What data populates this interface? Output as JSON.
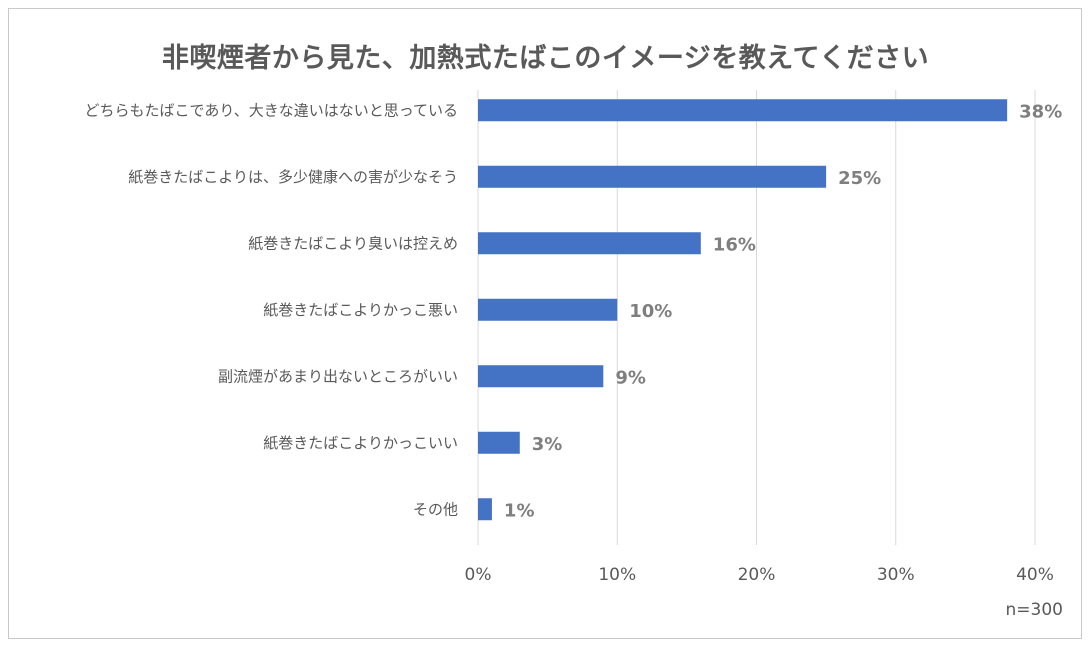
{
  "chart_data": {
    "type": "bar",
    "orientation": "horizontal",
    "title": "非喫煙者から見た、加熱式たばこのイメージを教えてください",
    "categories": [
      "どちらもたばこであり、大きな違いはないと思っている",
      "紙巻きたばこよりは、多少健康への害が少なそう",
      "紙巻きたばこより臭いは控えめ",
      "紙巻きたばこよりかっこ悪い",
      "副流煙があまり出ないところがいい",
      "紙巻きたばこよりかっこいい",
      "その他"
    ],
    "values": [
      38,
      25,
      16,
      10,
      9,
      3,
      1
    ],
    "data_labels": [
      "38%",
      "25%",
      "16%",
      "10%",
      "9%",
      "3%",
      "1%"
    ],
    "xlim": [
      0,
      40
    ],
    "x_ticks": [
      "0%",
      "10%",
      "20%",
      "30%",
      "40%"
    ],
    "grid": true,
    "bar_color": "#4472c4",
    "note": "n=300"
  }
}
